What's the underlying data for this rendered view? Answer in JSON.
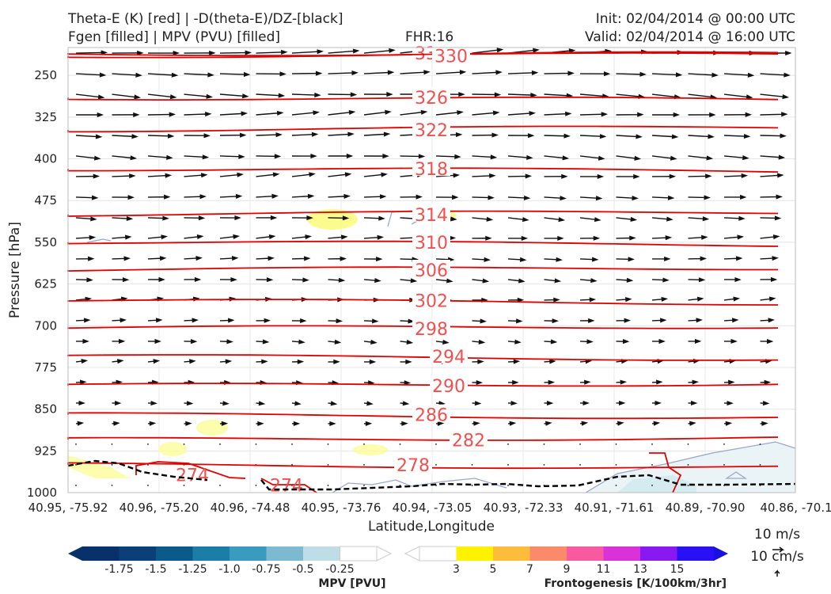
{
  "header": {
    "title_left_1": "Theta-E (K) [red] | -D(theta-E)/DZ-[black]",
    "title_left_2": "Fgen [filled] | MPV (PVU) [filled]",
    "fhr": "FHR:16",
    "init": "Init: 02/04/2014 @ 00:00 UTC",
    "valid": "Valid: 02/04/2014 @ 16:00 UTC"
  },
  "chart_data": {
    "type": "cross-section",
    "xlabel": "Latitude,Longitude",
    "ylabel": "Pressure [hPa]",
    "x_tick_labels": [
      "40.95, -75.92",
      "40.96, -75.20",
      "40.96, -74.48",
      "40.95, -73.76",
      "40.94, -73.05",
      "40.93, -72.33",
      "40.91, -71.61",
      "40.89, -70.90",
      "40.86, -70.1"
    ],
    "y_ticks": [
      250,
      325,
      400,
      475,
      550,
      625,
      700,
      775,
      850,
      925,
      1000
    ],
    "ylim": [
      1000,
      200
    ],
    "grid": true,
    "theta_e_contours": [
      {
        "level": 334,
        "p": 210,
        "label": "334"
      },
      {
        "level": 330,
        "p": 215,
        "label": "330"
      },
      {
        "level": 326,
        "p": 290,
        "label": "326"
      },
      {
        "level": 322,
        "p": 348,
        "label": "322"
      },
      {
        "level": 318,
        "p": 418,
        "label": "318"
      },
      {
        "level": 314,
        "p": 500,
        "label": "314"
      },
      {
        "level": 310,
        "p": 550,
        "label": "310"
      },
      {
        "level": 306,
        "p": 600,
        "label": "306"
      },
      {
        "level": 302,
        "p": 655,
        "label": "302"
      },
      {
        "level": 298,
        "p": 705,
        "label": "298"
      },
      {
        "level": 294,
        "p": 755,
        "label": "294"
      },
      {
        "level": 290,
        "p": 808,
        "label": "290"
      },
      {
        "level": 286,
        "p": 860,
        "label": "286"
      },
      {
        "level": 282,
        "p": 905,
        "label": "282"
      },
      {
        "level": 278,
        "p": 950,
        "label": "278"
      },
      {
        "level": 274,
        "p": 985,
        "label": "274"
      },
      {
        "level": 274,
        "p": 985,
        "label": "274"
      }
    ],
    "vector_reference": {
      "label_1": "10 m/s",
      "label_2": "10 cm/s"
    }
  },
  "colorbars": {
    "mpv": {
      "title": "MPV [PVU]",
      "colors": [
        "#08306b",
        "#0b3f7a",
        "#0b5a8c",
        "#1a7ea8",
        "#3a9bc0",
        "#7dbad1",
        "#bfdde6",
        "#ffffff"
      ],
      "labels": [
        "-1.75",
        "-1.5",
        "-1.25",
        "-1.0",
        "-0.75",
        "-0.5",
        "-0.25"
      ]
    },
    "fgen": {
      "title": "Frontogenesis [K/100km/3hr]",
      "colors": [
        "#ffffff",
        "#fff200",
        "#fdbd3a",
        "#fb8a6a",
        "#f75aa0",
        "#d832d8",
        "#8a18f0",
        "#2a10f5",
        "#1a10e0"
      ],
      "labels": [
        "3",
        "5",
        "7",
        "9",
        "11",
        "13",
        "15"
      ]
    }
  }
}
